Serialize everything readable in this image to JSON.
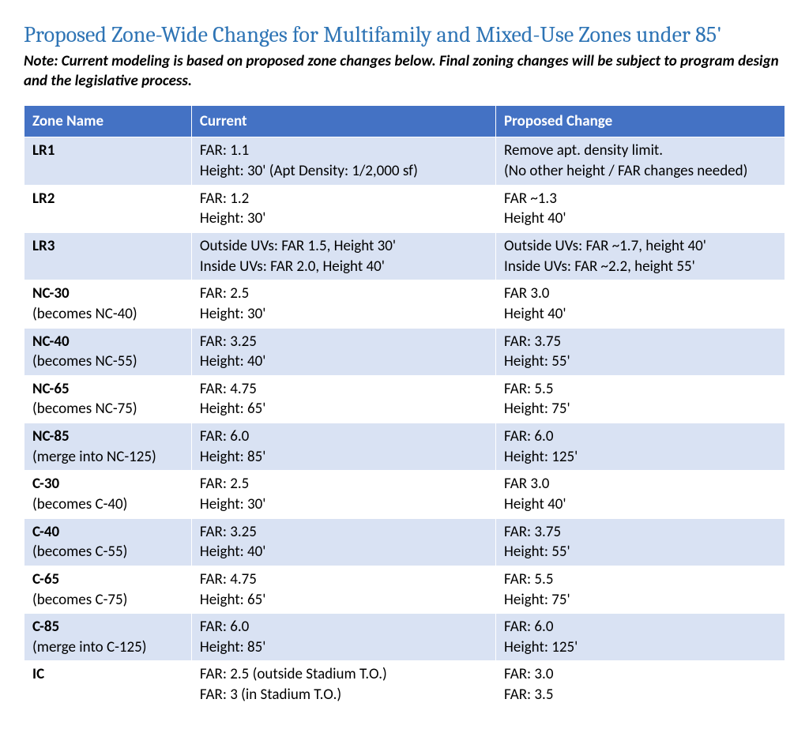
{
  "colors": {
    "title": "#2e74b5",
    "header_bg": "#4472c4",
    "header_fg": "#ffffff",
    "row_odd_bg": "#d9e2f3",
    "row_even_bg": "#ffffff",
    "border": "#ffffff",
    "text": "#000000"
  },
  "title": "Proposed Zone-Wide Changes for Multifamily and Mixed-Use Zones under 85'",
  "note": "Note: Current modeling is based on proposed zone changes below.  Final zoning changes will be subject to program design and the legislative process.",
  "table": {
    "columns": [
      "Zone Name",
      "Current",
      "Proposed Change"
    ],
    "rows": [
      {
        "zone_bold": "LR1",
        "zone_sub": "",
        "current": "FAR: 1.1\nHeight: 30'  (Apt Density: 1/2,000 sf)",
        "proposed": "Remove apt. density limit.\n(No other height / FAR changes needed)"
      },
      {
        "zone_bold": "LR2",
        "zone_sub": "",
        "current": "FAR: 1.2\nHeight: 30'",
        "proposed": "FAR ~1.3\nHeight 40'"
      },
      {
        "zone_bold": "LR3",
        "zone_sub": "",
        "current": "Outside UVs: FAR 1.5, Height 30'\nInside UVs: FAR 2.0, Height 40'",
        "proposed": "Outside UVs:  FAR ~1.7, height 40'\nInside UVs:  FAR ~2.2, height 55'"
      },
      {
        "zone_bold": "NC-30",
        "zone_sub": "(becomes NC-40)",
        "current": "FAR: 2.5\nHeight: 30'",
        "proposed": "FAR 3.0\nHeight 40'"
      },
      {
        "zone_bold": "NC-40",
        "zone_sub": "(becomes NC-55)",
        "current": "FAR: 3.25\nHeight: 40'",
        "proposed": "FAR: 3.75\nHeight: 55'"
      },
      {
        "zone_bold": "NC-65",
        "zone_sub": "(becomes NC-75)",
        "current": "FAR: 4.75\nHeight: 65'",
        "proposed": "FAR: 5.5\nHeight: 75'"
      },
      {
        "zone_bold": "NC-85",
        "zone_sub": "(merge into NC-125)",
        "current": "FAR: 6.0\nHeight: 85'",
        "proposed": "FAR: 6.0\nHeight: 125'"
      },
      {
        "zone_bold": "C-30",
        "zone_sub": "(becomes C-40)",
        "current": "FAR: 2.5\nHeight: 30'",
        "proposed": "FAR 3.0\nHeight 40'"
      },
      {
        "zone_bold": "C-40",
        "zone_sub": "(becomes C-55)",
        "current": "FAR: 3.25\nHeight: 40'",
        "proposed": "FAR: 3.75\nHeight: 55'"
      },
      {
        "zone_bold": "C-65",
        "zone_sub": "(becomes C-75)",
        "current": "FAR: 4.75\nHeight: 65'",
        "proposed": "FAR: 5.5\nHeight: 75'"
      },
      {
        "zone_bold": "C-85",
        "zone_sub": "(merge into C-125)",
        "current": "FAR: 6.0\nHeight: 85'",
        "proposed": "FAR: 6.0\nHeight: 125'"
      },
      {
        "zone_bold": "IC",
        "zone_sub": "",
        "current": "FAR: 2.5 (outside Stadium T.O.)\nFAR: 3 (in Stadium T.O.)",
        "proposed": "FAR: 3.0\nFAR: 3.5"
      }
    ]
  }
}
